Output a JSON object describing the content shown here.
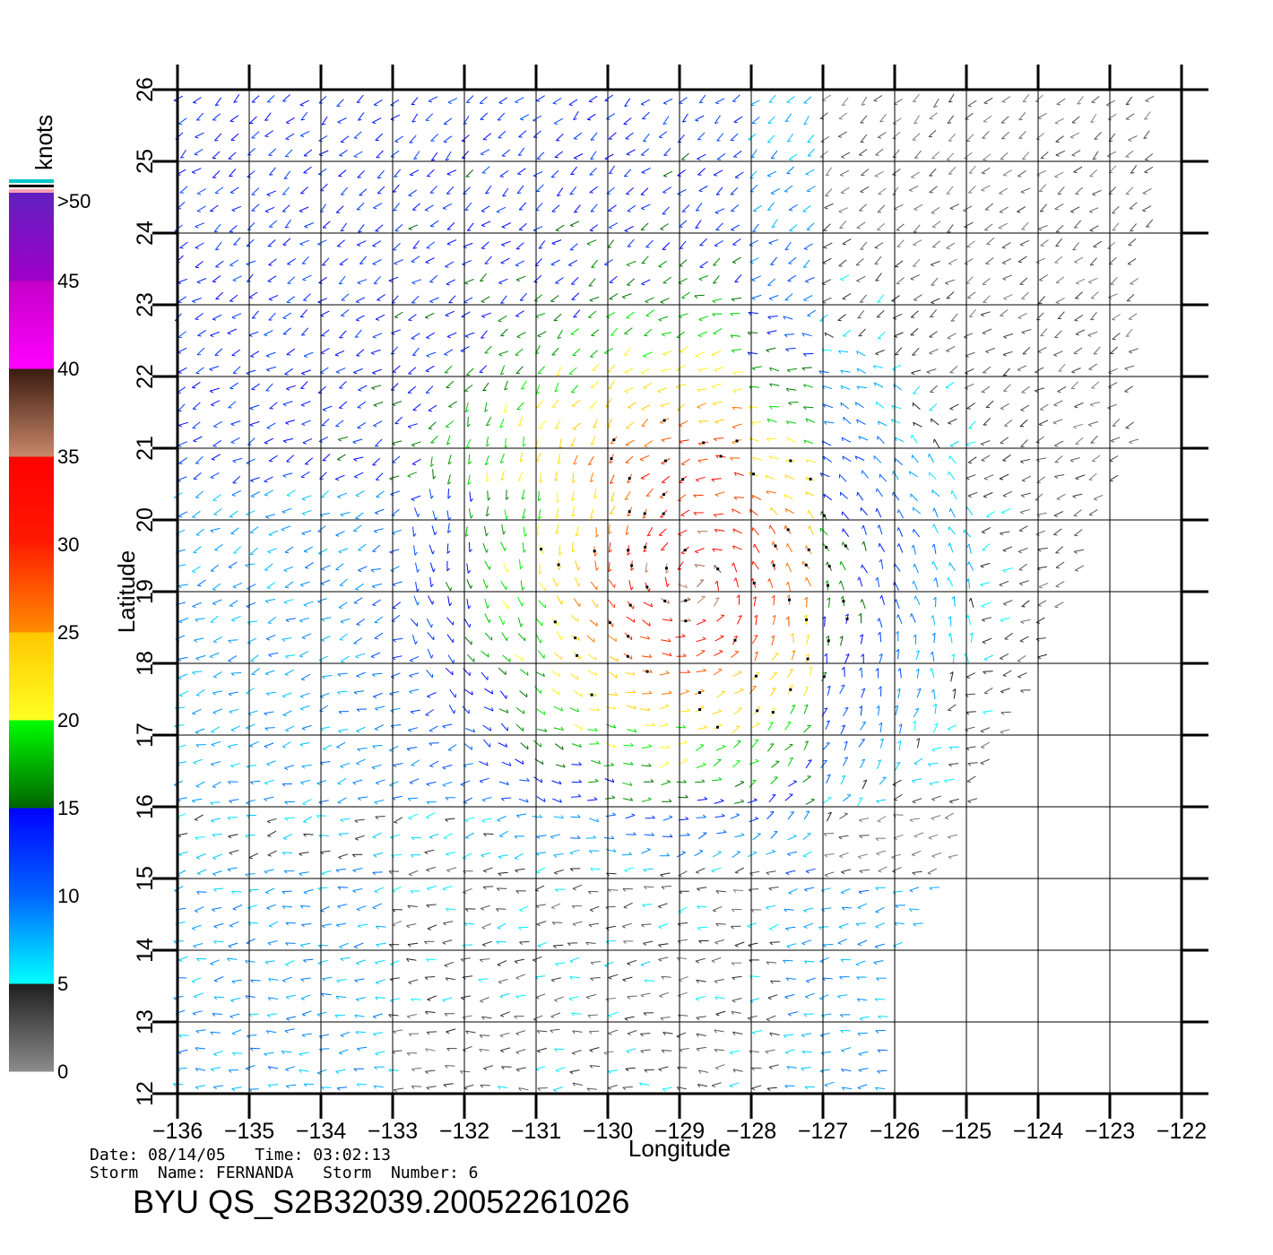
{
  "map": {
    "xlabel": "Longitude",
    "ylabel": "Latitude",
    "lon_ticks": [
      "−136",
      "−135",
      "−134",
      "−133",
      "−132",
      "−131",
      "−130",
      "−129",
      "−128",
      "−127",
      "−126",
      "−125",
      "−124",
      "−123",
      "−122"
    ],
    "lat_ticks": [
      "12",
      "13",
      "14",
      "15",
      "16",
      "17",
      "18",
      "19",
      "20",
      "21",
      "22",
      "23",
      "24",
      "25",
      "26"
    ],
    "lon_range": [
      -136,
      -122
    ],
    "lat_range": [
      12,
      26
    ],
    "grid": true,
    "layer": "wind vectors",
    "storm_center": {
      "lon": -128.8,
      "lat": 19.2
    }
  },
  "colorbar": {
    "unit": "knots",
    "labels": [
      ">50",
      "45",
      "40",
      "35",
      "30",
      "25",
      "20",
      "15",
      "10",
      "5",
      "0"
    ],
    "bands": [
      {
        "from": 0,
        "to": 5,
        "colors": [
          "#8c8c8c",
          "#1e1e1e"
        ]
      },
      {
        "from": 5,
        "to": 10,
        "colors": [
          "#00ffff",
          "#0066ff"
        ]
      },
      {
        "from": 10,
        "to": 15,
        "colors": [
          "#0066ff",
          "#0000ff"
        ]
      },
      {
        "from": 15,
        "to": 20,
        "colors": [
          "#006400",
          "#00ff00"
        ]
      },
      {
        "from": 20,
        "to": 25,
        "colors": [
          "#ffff22",
          "#ffc800"
        ]
      },
      {
        "from": 25,
        "to": 30,
        "colors": [
          "#ff8c00",
          "#ff2000"
        ]
      },
      {
        "from": 30,
        "to": 35,
        "colors": [
          "#ff1a00",
          "#ff0000"
        ]
      },
      {
        "from": 35,
        "to": 40,
        "colors": [
          "#c8886a",
          "#3a1a10"
        ]
      },
      {
        "from": 40,
        "to": 45,
        "colors": [
          "#ff00ff",
          "#c400c8"
        ]
      },
      {
        "from": 45,
        "to": 50,
        "colors": [
          "#a000c8",
          "#6020c0"
        ]
      }
    ],
    "rain_flag_colors": [
      "#ffa0b4",
      "#000000",
      "#00c8c8"
    ]
  },
  "info": {
    "date_line": "Date: 08/14/05   Time: 03:02:13",
    "storm_line": "Storm  Name: FERNANDA   Storm  Number: 6",
    "product": "BYU  QS_S2B32039.20052261026"
  }
}
